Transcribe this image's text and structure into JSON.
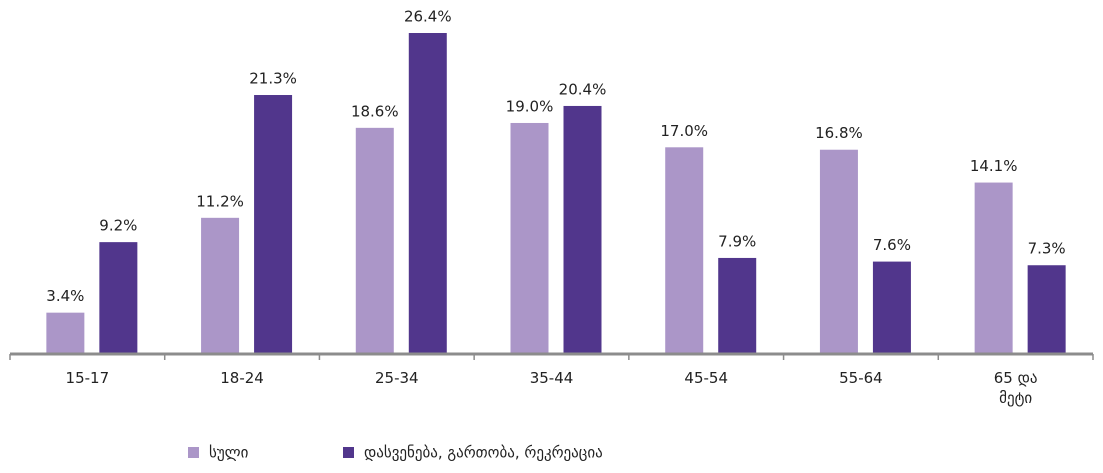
{
  "chart_data": {
    "type": "bar",
    "categories": [
      "15-17",
      "18-24",
      "25-34",
      "35-44",
      "45-54",
      "55-64",
      "65 და მეტი"
    ],
    "series": [
      {
        "name": "სული",
        "color": "#ab96c8",
        "values": [
          3.4,
          11.2,
          18.6,
          19.0,
          17.0,
          16.8,
          14.1
        ],
        "value_labels": [
          "3.4%",
          "11.2%",
          "18.6%",
          "19.0%",
          "17.0%",
          "16.8%",
          "14.1%"
        ]
      },
      {
        "name": "დასვენება, გართობა, რეკრეაცია",
        "color": "#51368c",
        "values": [
          9.2,
          21.3,
          26.4,
          20.4,
          7.9,
          7.6,
          7.3
        ],
        "value_labels": [
          "9.2%",
          "21.3%",
          "26.4%",
          "20.4%",
          "7.9%",
          "7.6%",
          "7.3%"
        ]
      }
    ],
    "legend": "bottom"
  }
}
